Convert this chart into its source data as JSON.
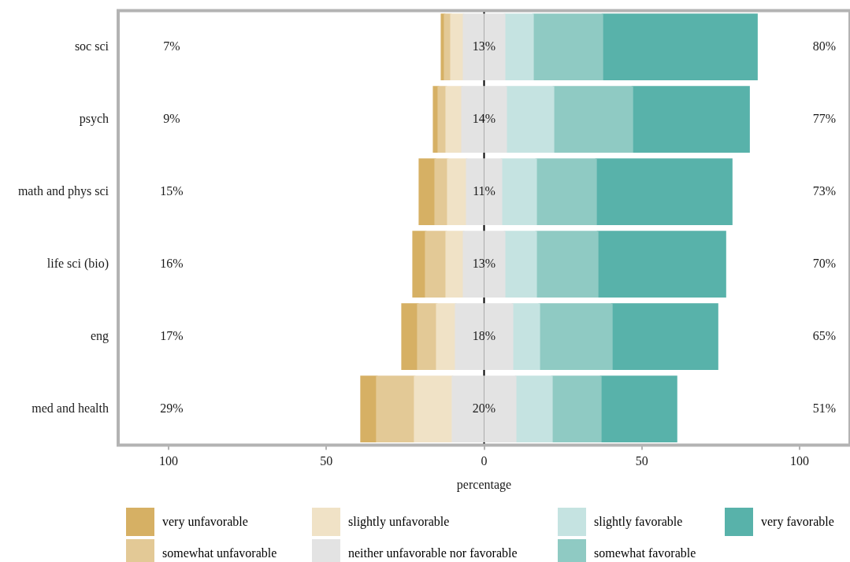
{
  "chart_data": {
    "type": "bar",
    "orientation": "horizontal",
    "stacked": true,
    "xlabel": "percentage",
    "categories": [
      "soc sci",
      "psych",
      "math and phys sci",
      "life sci (bio)",
      "eng",
      "med and health"
    ],
    "series": [
      {
        "name": "neither unfavorable nor favorable",
        "color": "#e3e3e3",
        "values": [
          -6.5,
          -7,
          -5.5,
          -6.5,
          -9,
          -10
        ]
      },
      {
        "name": "slightly unfavorable",
        "color": "#f0e2c6",
        "values": [
          -4,
          -5,
          -6,
          -5.5,
          -6,
          -12
        ]
      },
      {
        "name": "somewhat unfavorable",
        "color": "#e3c996",
        "values": [
          -2,
          -2.5,
          -4,
          -6.5,
          -6,
          -12
        ]
      },
      {
        "name": "very unfavorable",
        "color": "#d6b064",
        "values": [
          -1,
          -1.5,
          -5,
          -4,
          -5,
          -5
        ]
      },
      {
        "color": "#e3e3e3",
        "values": [
          6.5,
          7,
          5.5,
          6.5,
          9,
          10
        ]
      },
      {
        "name": "slightly favorable",
        "color": "#c5e3e1",
        "values": [
          9,
          15,
          11,
          10,
          8.5,
          11.5
        ]
      },
      {
        "name": "somewhat favorable",
        "color": "#8fcac3",
        "values": [
          22,
          25,
          19,
          19.5,
          23,
          15.5
        ]
      },
      {
        "name": "very favorable",
        "color": "#58b2aa",
        "values": [
          49,
          37,
          43,
          40.5,
          33.5,
          24
        ]
      }
    ],
    "xlim": [
      -116,
      116
    ],
    "xticks": [
      {
        "value": -100,
        "label": "100"
      },
      {
        "value": -50,
        "label": "50"
      },
      0,
      50,
      100
    ],
    "ref_lines": [
      {
        "axis": "x",
        "value": 0,
        "color": "#000000"
      }
    ],
    "legend": "bottom",
    "annotations": [
      "7%",
      "9%",
      "15%",
      "16%",
      "17%",
      "29%",
      "13%",
      "14%",
      "11%",
      "13%",
      "18%",
      "20%",
      "80%",
      "77%",
      "73%",
      "70%",
      "65%",
      "51%"
    ]
  }
}
